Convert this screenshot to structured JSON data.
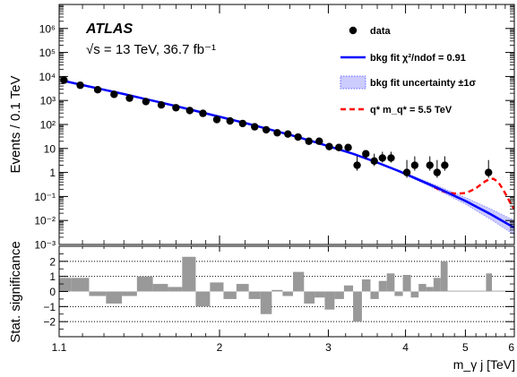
{
  "chart_data": [
    {
      "type": "scatter",
      "panel": "main",
      "atlas_label": "ATLAS",
      "energy_label": "√s = 13 TeV, 36.7 fb⁻¹",
      "ylabel": "Events / 0.1 TeV",
      "yscale": "log",
      "xscale": "log",
      "xlim": [
        1.1,
        6.0
      ],
      "ylim": [
        0.001,
        10000000
      ],
      "y_ticks": [
        {
          "value": 0.001,
          "label": "10⁻³"
        },
        {
          "value": 0.01,
          "label": "10⁻²"
        },
        {
          "value": 0.1,
          "label": "10⁻¹"
        },
        {
          "value": 1,
          "label": "1"
        },
        {
          "value": 10,
          "label": "10"
        },
        {
          "value": 100,
          "label": "10²"
        },
        {
          "value": 1000,
          "label": "10³"
        },
        {
          "value": 10000,
          "label": "10⁴"
        },
        {
          "value": 100000,
          "label": "10⁵"
        },
        {
          "value": 1000000,
          "label": "10⁶"
        }
      ],
      "legend": {
        "data": "data",
        "fit": "bkg fit  χ²/ndof = 0.91",
        "uncertainty": "bkg fit uncertainty  ±1σ",
        "signal": "q* m_q* = 5.5 TeV",
        "placement": "top-right"
      },
      "series": [
        {
          "name": "data",
          "points": [
            {
              "x": 1.12,
              "y": 7000
            },
            {
              "x": 1.19,
              "y": 4300
            },
            {
              "x": 1.27,
              "y": 2800
            },
            {
              "x": 1.35,
              "y": 1800
            },
            {
              "x": 1.43,
              "y": 1250
            },
            {
              "x": 1.52,
              "y": 900
            },
            {
              "x": 1.61,
              "y": 650
            },
            {
              "x": 1.7,
              "y": 500
            },
            {
              "x": 1.79,
              "y": 380
            },
            {
              "x": 1.88,
              "y": 290
            },
            {
              "x": 1.98,
              "y": 160
            },
            {
              "x": 2.08,
              "y": 140
            },
            {
              "x": 2.18,
              "y": 110
            },
            {
              "x": 2.28,
              "y": 80
            },
            {
              "x": 2.38,
              "y": 60
            },
            {
              "x": 2.48,
              "y": 45
            },
            {
              "x": 2.58,
              "y": 40
            },
            {
              "x": 2.68,
              "y": 30
            },
            {
              "x": 2.79,
              "y": 20
            },
            {
              "x": 2.9,
              "y": 20
            },
            {
              "x": 3.01,
              "y": 12
            },
            {
              "x": 3.12,
              "y": 11
            },
            {
              "x": 3.23,
              "y": 11
            },
            {
              "x": 3.34,
              "y": 2
            },
            {
              "x": 3.45,
              "y": 6
            },
            {
              "x": 3.56,
              "y": 3
            },
            {
              "x": 3.67,
              "y": 4
            },
            {
              "x": 3.79,
              "y": 4
            },
            {
              "x": 4.02,
              "y": 1
            },
            {
              "x": 4.14,
              "y": 2
            },
            {
              "x": 4.38,
              "y": 2
            },
            {
              "x": 4.5,
              "y": 1
            },
            {
              "x": 4.63,
              "y": 2
            },
            {
              "x": 5.45,
              "y": 1
            }
          ]
        },
        {
          "name": "bkg fit",
          "color": "#0000ff",
          "x": [
            1.12,
            1.2,
            1.3,
            1.4,
            1.5,
            1.6,
            1.7,
            1.8,
            1.9,
            2.0,
            2.2,
            2.4,
            2.6,
            2.8,
            3.0,
            3.3,
            3.6,
            3.9,
            4.2,
            4.5,
            5.0,
            5.5,
            6.0
          ],
          "y": [
            6500,
            4400,
            2800,
            1850,
            1230,
            840,
            580,
            410,
            290,
            210,
            115,
            64,
            37,
            21.5,
            12.5,
            5.8,
            2.6,
            1.15,
            0.5,
            0.23,
            0.065,
            0.018,
            0.005
          ]
        },
        {
          "name": "bkg fit uncertainty",
          "color": "#ccccff",
          "x": [
            3.6,
            3.9,
            4.2,
            4.5,
            5.0,
            5.5,
            6.0
          ],
          "y_low": [
            2.4,
            1.05,
            0.44,
            0.19,
            0.048,
            0.011,
            0.0025
          ],
          "y_high": [
            2.8,
            1.26,
            0.57,
            0.28,
            0.09,
            0.03,
            0.01
          ]
        },
        {
          "name": "q* m_q* = 5.5 TeV",
          "color": "#ff0000",
          "x": [
            4.45,
            4.55,
            4.7,
            4.85,
            5.0,
            5.1,
            5.2,
            5.3,
            5.38,
            5.45,
            5.55,
            5.65,
            5.75,
            5.85,
            5.95,
            6.0
          ],
          "y": [
            0.25,
            0.18,
            0.14,
            0.13,
            0.14,
            0.17,
            0.22,
            0.32,
            0.42,
            0.5,
            0.55,
            0.4,
            0.2,
            0.09,
            0.04,
            0.03
          ]
        }
      ]
    },
    {
      "type": "bar",
      "panel": "ratio",
      "ylabel": "Stat. significance",
      "xlabel": "m_γ j [TeV]",
      "xscale": "log",
      "xlim": [
        1.1,
        6.0
      ],
      "ylim": [
        -3,
        3
      ],
      "y_ticks": [
        "−2",
        "−1",
        "0",
        "1",
        "2"
      ],
      "x_ticks": [
        "1.1",
        "2",
        "3",
        "4",
        "5",
        "6"
      ],
      "dotted_lines": [
        -2,
        -1,
        1,
        2
      ],
      "bins": [
        {
          "x0": 1.1,
          "x1": 1.15,
          "v": 0.9
        },
        {
          "x0": 1.15,
          "x1": 1.23,
          "v": 0.9
        },
        {
          "x0": 1.23,
          "x1": 1.31,
          "v": -0.3
        },
        {
          "x0": 1.31,
          "x1": 1.39,
          "v": -0.8
        },
        {
          "x0": 1.39,
          "x1": 1.47,
          "v": -0.3
        },
        {
          "x0": 1.47,
          "x1": 1.56,
          "v": 1.0
        },
        {
          "x0": 1.56,
          "x1": 1.65,
          "v": 0.5
        },
        {
          "x0": 1.65,
          "x1": 1.74,
          "v": 0.3
        },
        {
          "x0": 1.74,
          "x1": 1.83,
          "v": 2.3
        },
        {
          "x0": 1.83,
          "x1": 1.93,
          "v": -1.0
        },
        {
          "x0": 1.93,
          "x1": 2.03,
          "v": 0.6
        },
        {
          "x0": 2.03,
          "x1": 2.13,
          "v": -0.5
        },
        {
          "x0": 2.13,
          "x1": 2.23,
          "v": 0.5
        },
        {
          "x0": 2.23,
          "x1": 2.33,
          "v": -0.5
        },
        {
          "x0": 2.33,
          "x1": 2.43,
          "v": -1.5
        },
        {
          "x0": 2.43,
          "x1": 2.53,
          "v": 0.1
        },
        {
          "x0": 2.53,
          "x1": 2.63,
          "v": -0.3
        },
        {
          "x0": 2.63,
          "x1": 2.74,
          "v": 1.3
        },
        {
          "x0": 2.74,
          "x1": 2.85,
          "v": -0.8
        },
        {
          "x0": 2.85,
          "x1": 2.96,
          "v": -0.4
        },
        {
          "x0": 2.96,
          "x1": 3.07,
          "v": -1.2
        },
        {
          "x0": 3.07,
          "x1": 3.18,
          "v": -0.5
        },
        {
          "x0": 3.18,
          "x1": 3.29,
          "v": 0.4
        },
        {
          "x0": 3.29,
          "x1": 3.4,
          "v": -2.0
        },
        {
          "x0": 3.4,
          "x1": 3.51,
          "v": 0.8
        },
        {
          "x0": 3.51,
          "x1": 3.62,
          "v": -0.5
        },
        {
          "x0": 3.62,
          "x1": 3.73,
          "v": 0.7
        },
        {
          "x0": 3.73,
          "x1": 3.84,
          "v": 1.2
        },
        {
          "x0": 3.84,
          "x1": 3.96,
          "v": -0.3
        },
        {
          "x0": 3.96,
          "x1": 4.08,
          "v": 1.1
        },
        {
          "x0": 4.08,
          "x1": 4.2,
          "v": -0.4
        },
        {
          "x0": 4.2,
          "x1": 4.32,
          "v": 0.5
        },
        {
          "x0": 4.32,
          "x1": 4.44,
          "v": 0.3
        },
        {
          "x0": 4.44,
          "x1": 4.56,
          "v": 0.9
        },
        {
          "x0": 4.56,
          "x1": 4.68,
          "v": 2.0
        },
        {
          "x0": 4.68,
          "x1": 5.4,
          "v": 0.05
        },
        {
          "x0": 5.4,
          "x1": 5.52,
          "v": 1.2
        },
        {
          "x0": 5.52,
          "x1": 6.0,
          "v": 0.05
        }
      ]
    }
  ]
}
